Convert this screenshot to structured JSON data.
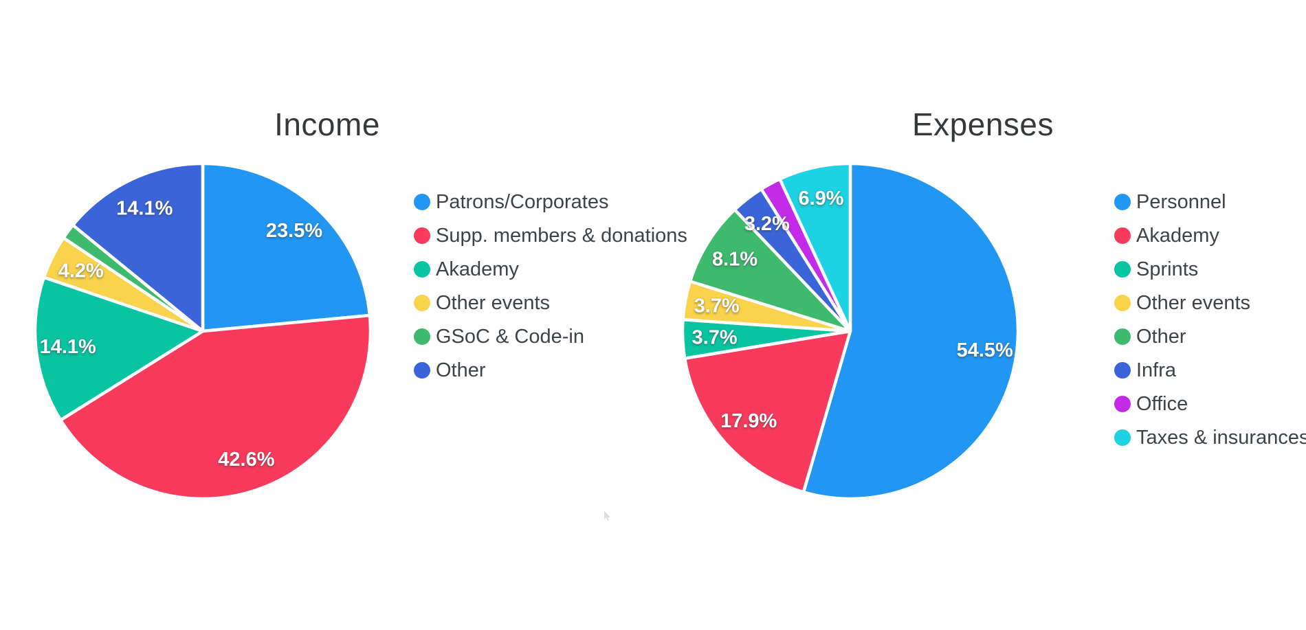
{
  "page": {
    "background": "#ffffff"
  },
  "chart_data": [
    {
      "type": "pie",
      "title": "Income",
      "legend_position": "right",
      "start_angle_deg": 0,
      "direction": "clockwise",
      "series": [
        {
          "label": "Patrons/Corporates",
          "value": 23.5,
          "display": "23.5%",
          "color": "#2196f3"
        },
        {
          "label": "Supp. members & donations",
          "value": 42.6,
          "display": "42.6%",
          "color": "#f83b5c"
        },
        {
          "label": "Akademy",
          "value": 14.1,
          "display": "14.1%",
          "color": "#09c4a1"
        },
        {
          "label": "Other events",
          "value": 4.2,
          "display": "4.2%",
          "color": "#f9d34b"
        },
        {
          "label": "GSoC & Code-in",
          "value": 1.5,
          "display": "",
          "color": "#3dba6d"
        },
        {
          "label": "Other",
          "value": 14.1,
          "display": "14.1%",
          "color": "#3a64d8"
        }
      ]
    },
    {
      "type": "pie",
      "title": "Expenses",
      "legend_position": "right",
      "start_angle_deg": 0,
      "direction": "clockwise",
      "series": [
        {
          "label": "Personnel",
          "value": 54.5,
          "display": "54.5%",
          "color": "#2196f3"
        },
        {
          "label": "Akademy",
          "value": 17.9,
          "display": "17.9%",
          "color": "#f83b5c"
        },
        {
          "label": "Sprints",
          "value": 3.7,
          "display": "3.7%",
          "color": "#09c4a1"
        },
        {
          "label": "Other events",
          "value": 3.7,
          "display": "3.7%",
          "color": "#f9d34b"
        },
        {
          "label": "Other",
          "value": 8.1,
          "display": "8.1%",
          "color": "#3dba6d"
        },
        {
          "label": "Infra",
          "value": 3.2,
          "display": "3.2%",
          "color": "#3a64d8"
        },
        {
          "label": "Office",
          "value": 2.0,
          "display": "",
          "color": "#c32be8"
        },
        {
          "label": "Taxes & insurances",
          "value": 6.9,
          "display": "6.9%",
          "color": "#1dd2e2"
        }
      ]
    }
  ]
}
